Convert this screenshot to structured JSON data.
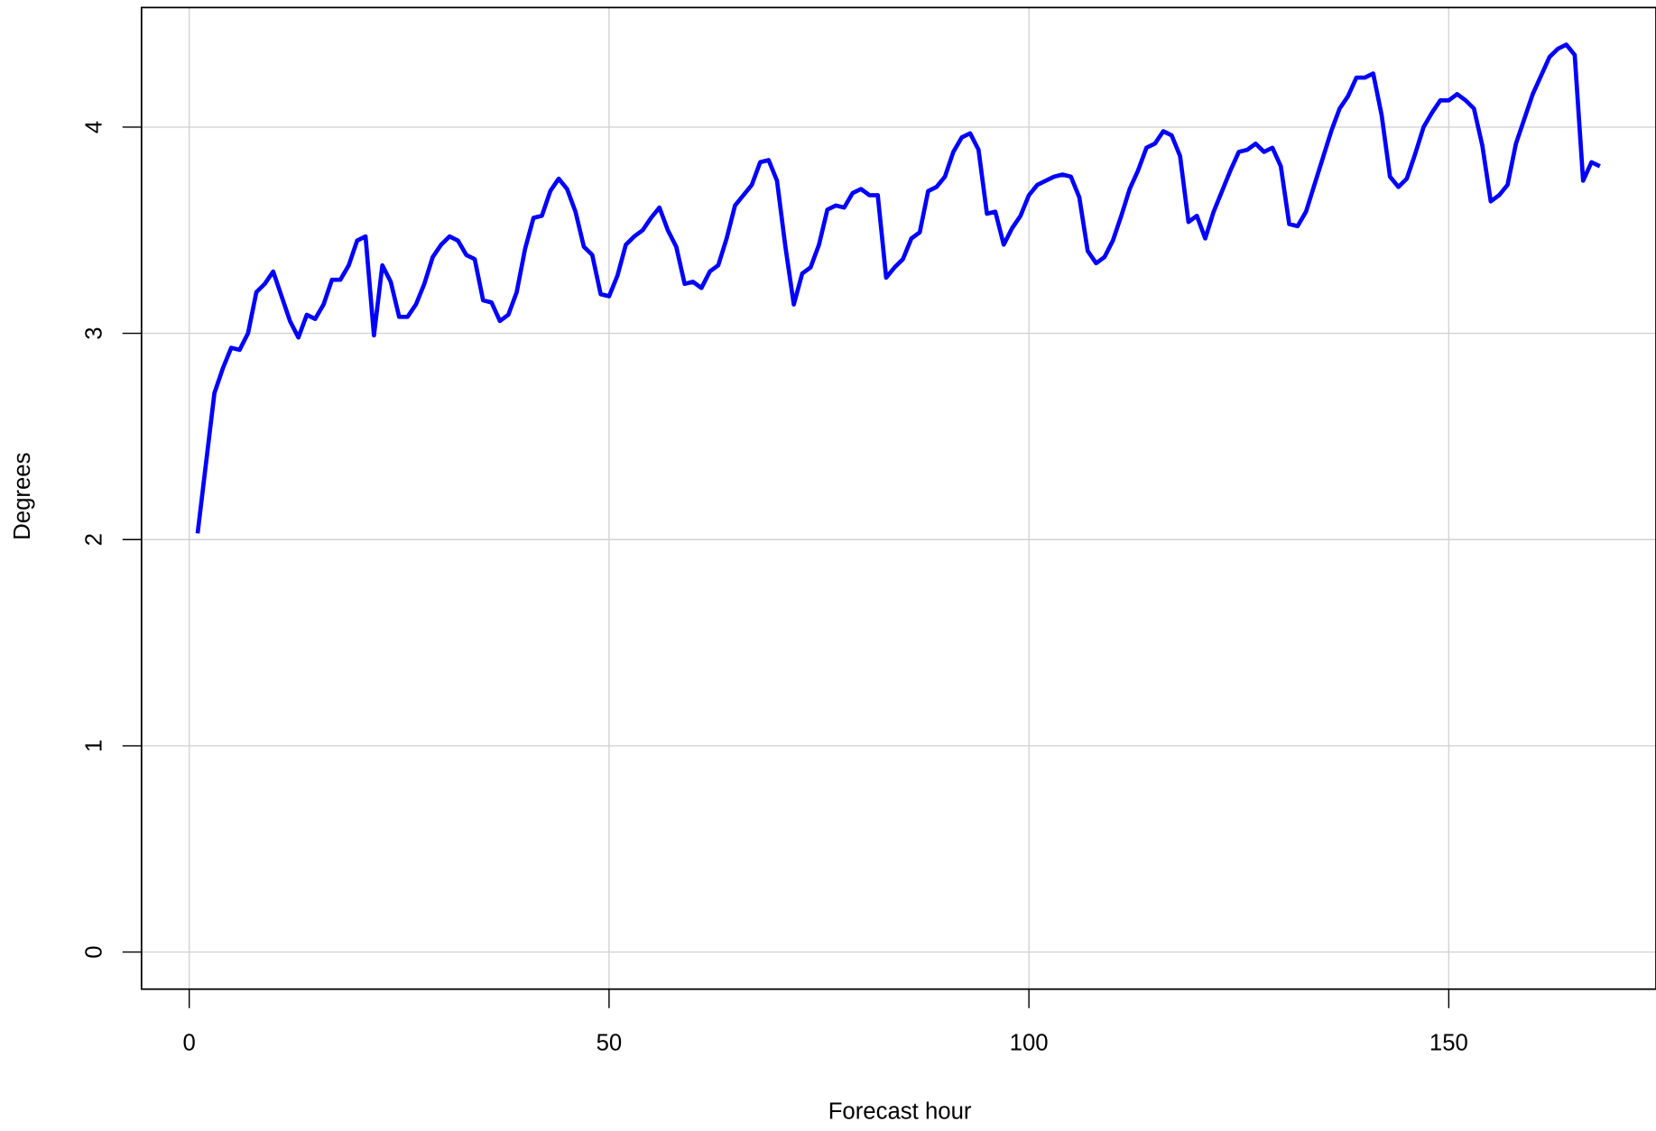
{
  "chart_data": {
    "type": "line",
    "xlabel": "Forecast hour",
    "ylabel": "Degrees",
    "x": [
      1,
      2,
      3,
      4,
      5,
      6,
      7,
      8,
      9,
      10,
      11,
      12,
      13,
      14,
      15,
      16,
      17,
      18,
      19,
      20,
      21,
      22,
      23,
      24,
      25,
      26,
      27,
      28,
      29,
      30,
      31,
      32,
      33,
      34,
      35,
      36,
      37,
      38,
      39,
      40,
      41,
      42,
      43,
      44,
      45,
      46,
      47,
      48,
      49,
      50,
      51,
      52,
      53,
      54,
      55,
      56,
      57,
      58,
      59,
      60,
      61,
      62,
      63,
      64,
      65,
      66,
      67,
      68,
      69,
      70,
      71,
      72,
      73,
      74,
      75,
      76,
      77,
      78,
      79,
      80,
      81,
      82,
      83,
      84,
      85,
      86,
      87,
      88,
      89,
      90,
      91,
      92,
      93,
      94,
      95,
      96,
      97,
      98,
      99,
      100,
      101,
      102,
      103,
      104,
      105,
      106,
      107,
      108,
      109,
      110,
      111,
      112,
      113,
      114,
      115,
      116,
      117,
      118,
      119,
      120,
      121,
      122,
      123,
      124,
      125,
      126,
      127,
      128,
      129,
      130,
      131,
      132,
      133,
      134,
      135,
      136,
      137,
      138,
      139,
      140,
      141,
      142,
      143,
      144,
      145,
      146,
      147,
      148,
      149,
      150,
      151,
      152,
      153,
      154,
      155,
      156,
      157,
      158,
      159,
      160,
      161,
      162,
      163,
      164,
      165,
      166,
      167,
      168
    ],
    "values": [
      2.03,
      2.37,
      2.71,
      2.83,
      2.93,
      2.92,
      3.0,
      3.2,
      3.24,
      3.3,
      3.18,
      3.06,
      2.98,
      3.09,
      3.07,
      3.14,
      3.26,
      3.26,
      3.33,
      3.45,
      3.47,
      2.99,
      3.33,
      3.25,
      3.08,
      3.08,
      3.14,
      3.24,
      3.37,
      3.43,
      3.47,
      3.45,
      3.38,
      3.36,
      3.16,
      3.15,
      3.06,
      3.09,
      3.2,
      3.41,
      3.56,
      3.57,
      3.69,
      3.75,
      3.7,
      3.59,
      3.42,
      3.38,
      3.19,
      3.18,
      3.28,
      3.43,
      3.47,
      3.5,
      3.56,
      3.61,
      3.5,
      3.42,
      3.24,
      3.25,
      3.22,
      3.3,
      3.33,
      3.46,
      3.62,
      3.67,
      3.72,
      3.83,
      3.84,
      3.74,
      3.42,
      3.14,
      3.29,
      3.32,
      3.43,
      3.6,
      3.62,
      3.61,
      3.68,
      3.7,
      3.67,
      3.67,
      3.27,
      3.32,
      3.36,
      3.46,
      3.49,
      3.69,
      3.71,
      3.76,
      3.88,
      3.95,
      3.97,
      3.89,
      3.58,
      3.59,
      3.43,
      3.51,
      3.57,
      3.67,
      3.72,
      3.74,
      3.76,
      3.77,
      3.76,
      3.66,
      3.4,
      3.34,
      3.37,
      3.45,
      3.57,
      3.7,
      3.79,
      3.9,
      3.92,
      3.98,
      3.96,
      3.86,
      3.54,
      3.57,
      3.46,
      3.59,
      3.69,
      3.79,
      3.88,
      3.89,
      3.92,
      3.88,
      3.9,
      3.81,
      3.53,
      3.52,
      3.59,
      3.72,
      3.85,
      3.98,
      4.09,
      4.15,
      4.24,
      4.24,
      4.26,
      4.06,
      3.76,
      3.71,
      3.75,
      3.87,
      4.0,
      4.07,
      4.13,
      4.13,
      4.16,
      4.13,
      4.09,
      3.91,
      3.64,
      3.67,
      3.72,
      3.92,
      4.04,
      4.16,
      4.25,
      4.34,
      4.38,
      4.4,
      4.35,
      3.74,
      3.83,
      3.81
    ],
    "color": "#0000ff",
    "xlim": [
      -5.68,
      174.68
    ],
    "ylim": [
      -0.18,
      4.58
    ],
    "xticks": [
      0,
      50,
      100,
      150
    ],
    "yticks": [
      0,
      1,
      2,
      3,
      4
    ],
    "grid": true
  }
}
